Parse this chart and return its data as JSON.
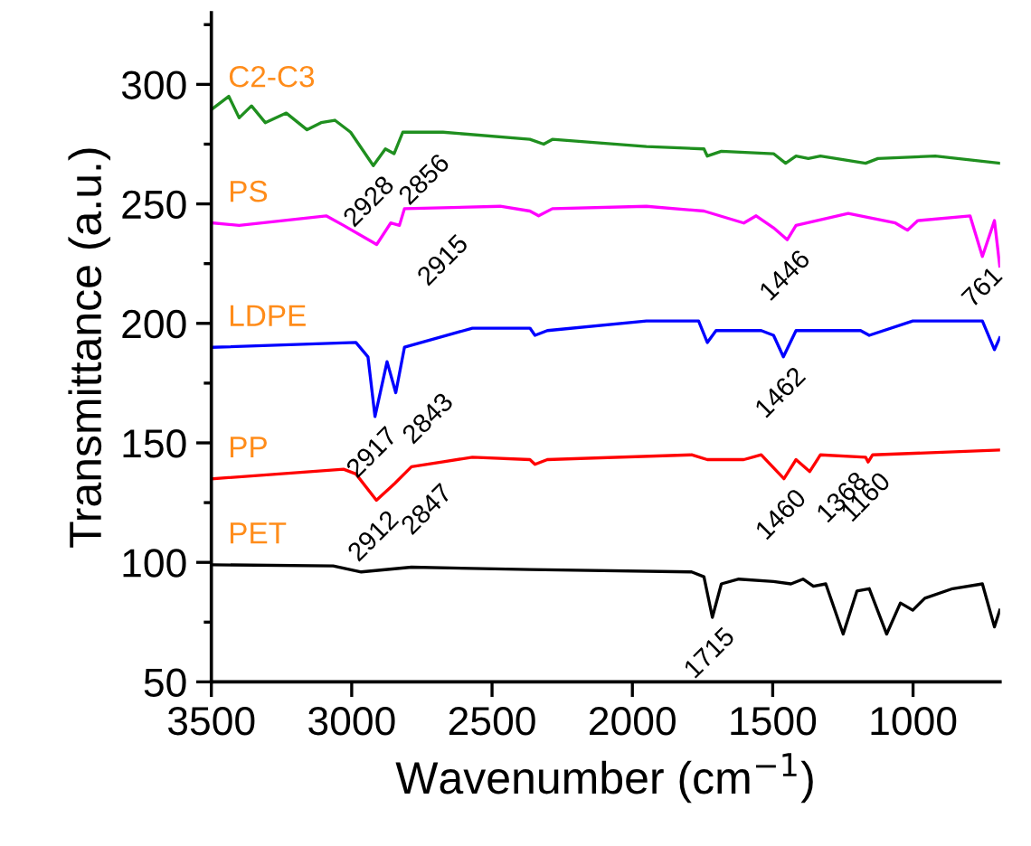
{
  "chart_data": {
    "type": "line",
    "xlabel": "Wavenumber (cm$^{−1}$)",
    "ylabel": "Transmittance (a.u.)",
    "xlim": [
      3500,
      690
    ],
    "xticks": [
      3500,
      3000,
      2500,
      2000,
      1500,
      1000
    ],
    "ylim": [
      50,
      330
    ],
    "yticks": [
      50,
      {
        "value": 75,
        "label": null
      },
      100,
      {
        "value": 125,
        "label": null
      },
      150,
      {
        "value": 175,
        "label": null
      },
      200,
      {
        "value": 225,
        "label": null
      },
      250,
      {
        "value": 275,
        "label": null
      },
      300,
      {
        "value": 325,
        "label": null
      }
    ],
    "grid": false,
    "legend": false,
    "marker": "none",
    "line_style": "solid",
    "series": [
      {
        "name": "C2-C3",
        "color": "#1f8f1f",
        "x": [
          3494,
          3438,
          3401,
          3357,
          3308,
          3233,
          3159,
          3109,
          3060,
          3004,
          2923,
          2880,
          2849,
          2818,
          2675,
          2365,
          2316,
          2285,
          1950,
          1745,
          1733,
          1683,
          1497,
          1454,
          1417,
          1373,
          1330,
          1169,
          1125,
          921,
          691
        ],
        "values": [
          290,
          295,
          286,
          291,
          284,
          288,
          281,
          284,
          285,
          280,
          266,
          273,
          271,
          280,
          280,
          277,
          275,
          277,
          274,
          273,
          270,
          272,
          271,
          267,
          270,
          269,
          270,
          267,
          269,
          270,
          267
        ]
      },
      {
        "name": "PS",
        "color": "#ff00ff",
        "x": [
          3494,
          3401,
          3091,
          3029,
          2911,
          2861,
          2830,
          2812,
          2471,
          2365,
          2334,
          2285,
          1950,
          1745,
          1603,
          1559,
          1497,
          1448,
          1417,
          1231,
          1063,
          1020,
          983,
          797,
          753,
          710,
          691
        ],
        "values": [
          242,
          241,
          245,
          241,
          233,
          242,
          241,
          248,
          249,
          247,
          245,
          248,
          249,
          247,
          242,
          245,
          240,
          235,
          241,
          246,
          242,
          239,
          243,
          245,
          228,
          243,
          224
        ]
      },
      {
        "name": "LDPE",
        "color": "#0000ff",
        "x": [
          3494,
          2985,
          2942,
          2917,
          2874,
          2843,
          2812,
          2570,
          2365,
          2347,
          2303,
          1950,
          1764,
          1733,
          1702,
          1541,
          1497,
          1462,
          1417,
          1187,
          1156,
          1001,
          753,
          710,
          691
        ],
        "values": [
          190,
          192,
          186,
          161,
          184,
          171,
          190,
          198,
          198,
          195,
          197,
          201,
          201,
          192,
          197,
          197,
          195,
          186,
          197,
          197,
          195,
          201,
          201,
          189,
          194
        ]
      },
      {
        "name": "PP",
        "color": "#ff0000",
        "x": [
          3494,
          3029,
          2985,
          2912,
          2847,
          2787,
          2570,
          2365,
          2347,
          2303,
          1789,
          1733,
          1603,
          1541,
          1460,
          1417,
          1368,
          1330,
          1169,
          1160,
          1144,
          691
        ],
        "values": [
          135,
          139,
          137,
          126,
          133,
          140,
          144,
          143,
          141,
          143,
          145,
          143,
          143,
          145,
          135,
          143,
          138,
          145,
          144,
          142,
          145,
          147
        ]
      },
      {
        "name": "PET",
        "color": "#000000",
        "x": [
          3494,
          3066,
          2966,
          2787,
          2365,
          1789,
          1745,
          1715,
          1683,
          1621,
          1497,
          1435,
          1392,
          1355,
          1311,
          1249,
          1200,
          1156,
          1094,
          1045,
          1001,
          958,
          859,
          753,
          710,
          691
        ],
        "values": [
          99,
          98.5,
          96,
          98,
          97,
          96,
          94,
          77,
          91,
          93,
          92,
          91,
          93,
          90,
          91,
          70,
          88,
          89,
          70,
          83,
          80,
          85,
          89,
          91,
          73,
          80
        ]
      }
    ],
    "annotations": [
      {
        "text": "2928",
        "x": 2928,
        "y": 266
      },
      {
        "text": "2856",
        "x": 2856,
        "y": 271
      },
      {
        "text": "2915",
        "x": 2915,
        "y": 233
      },
      {
        "text": "1446",
        "x": 1446,
        "y": 235
      },
      {
        "text": "761",
        "x": 761,
        "y": 228
      },
      {
        "text": "2917",
        "x": 2917,
        "y": 161
      },
      {
        "text": "2843",
        "x": 2843,
        "y": 171
      },
      {
        "text": "1462",
        "x": 1462,
        "y": 186
      },
      {
        "text": "2912",
        "x": 2912,
        "y": 126
      },
      {
        "text": "2847",
        "x": 2847,
        "y": 133
      },
      {
        "text": "1460",
        "x": 1460,
        "y": 135
      },
      {
        "text": "1368",
        "x": 1368,
        "y": 138
      },
      {
        "text": "1160",
        "x": 1160,
        "y": 142
      },
      {
        "text": "1715",
        "x": 1715,
        "y": 77
      }
    ]
  }
}
